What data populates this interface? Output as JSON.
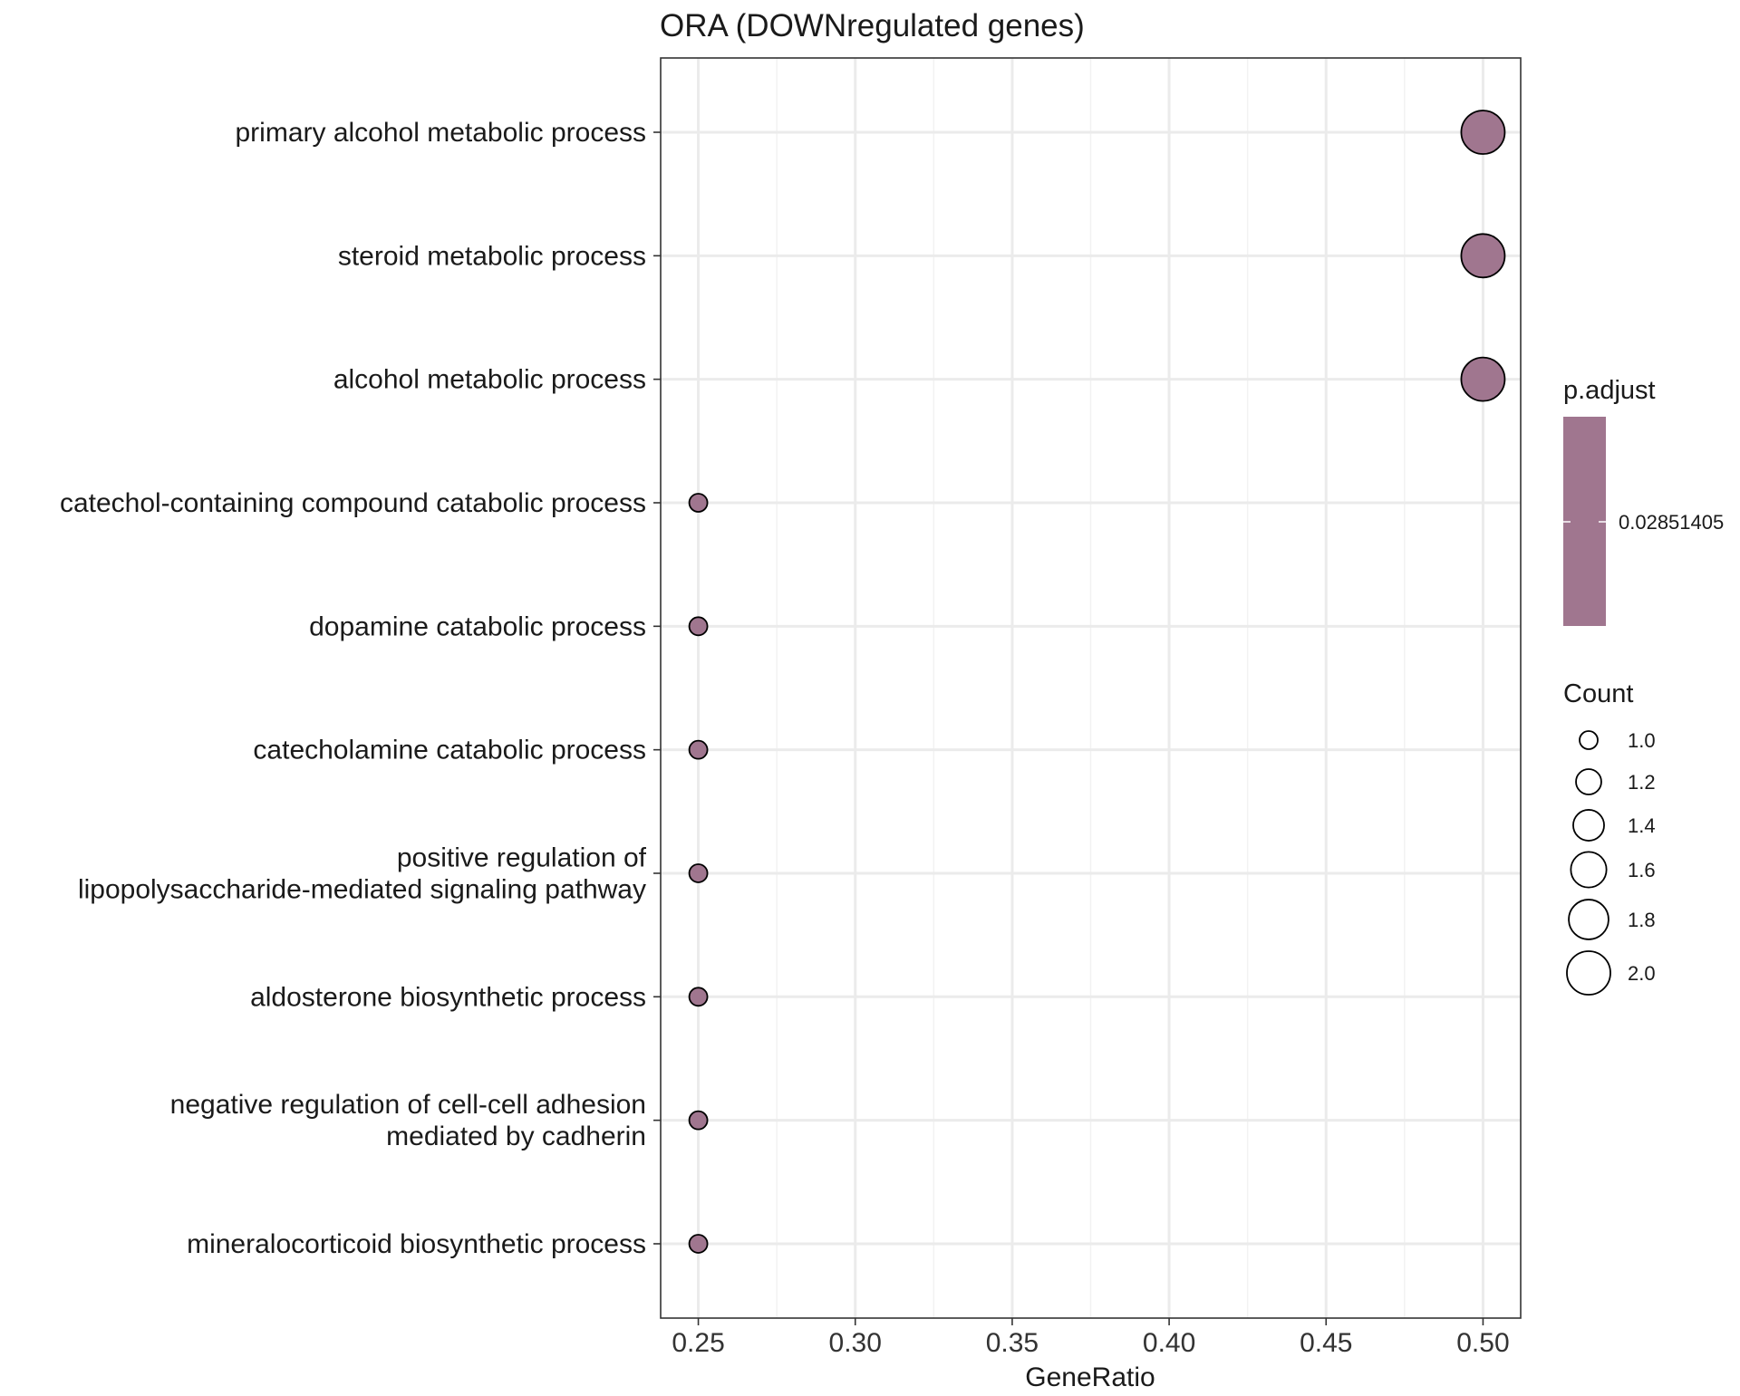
{
  "chart_data": {
    "type": "scatter",
    "subtype": "dotplot",
    "title": "ORA (DOWNregulated genes)",
    "xlabel": "GeneRatio",
    "ylabel": "",
    "xlim": [
      0.238,
      0.512
    ],
    "xticks": [
      0.25,
      0.3,
      0.35,
      0.4,
      0.45,
      0.5
    ],
    "xtick_labels": [
      "0.25",
      "0.30",
      "0.35",
      "0.40",
      "0.45",
      "0.50"
    ],
    "categories": [
      [
        "primary alcohol metabolic process"
      ],
      [
        "steroid metabolic process"
      ],
      [
        "alcohol metabolic process"
      ],
      [
        "catechol-containing compound catabolic process"
      ],
      [
        "dopamine catabolic process"
      ],
      [
        "catecholamine catabolic process"
      ],
      [
        "positive regulation of",
        "lipopolysaccharide-mediated signaling pathway"
      ],
      [
        "aldosterone biosynthetic process"
      ],
      [
        "negative regulation of cell-cell adhesion",
        "mediated by cadherin"
      ],
      [
        "mineralocorticoid biosynthetic process"
      ]
    ],
    "gene_ratio": [
      0.5,
      0.5,
      0.5,
      0.25,
      0.25,
      0.25,
      0.25,
      0.25,
      0.25,
      0.25
    ],
    "count": [
      2,
      2,
      2,
      1,
      1,
      1,
      1,
      1,
      1,
      1
    ],
    "p_adjust": [
      0.02851405,
      0.02851405,
      0.02851405,
      0.02851405,
      0.02851405,
      0.02851405,
      0.02851405,
      0.02851405,
      0.02851405,
      0.02851405
    ],
    "point_color": "#a0768f",
    "grid": true,
    "legend": {
      "color": {
        "title": "p.adjust",
        "labels": [
          "0.02851405"
        ],
        "color": "#a0768f"
      },
      "size": {
        "title": "Count",
        "values": [
          1.0,
          1.2,
          1.4,
          1.6,
          1.8,
          2.0
        ],
        "labels": [
          "1.0",
          "1.2",
          "1.4",
          "1.6",
          "1.8",
          "2.0"
        ]
      }
    }
  }
}
